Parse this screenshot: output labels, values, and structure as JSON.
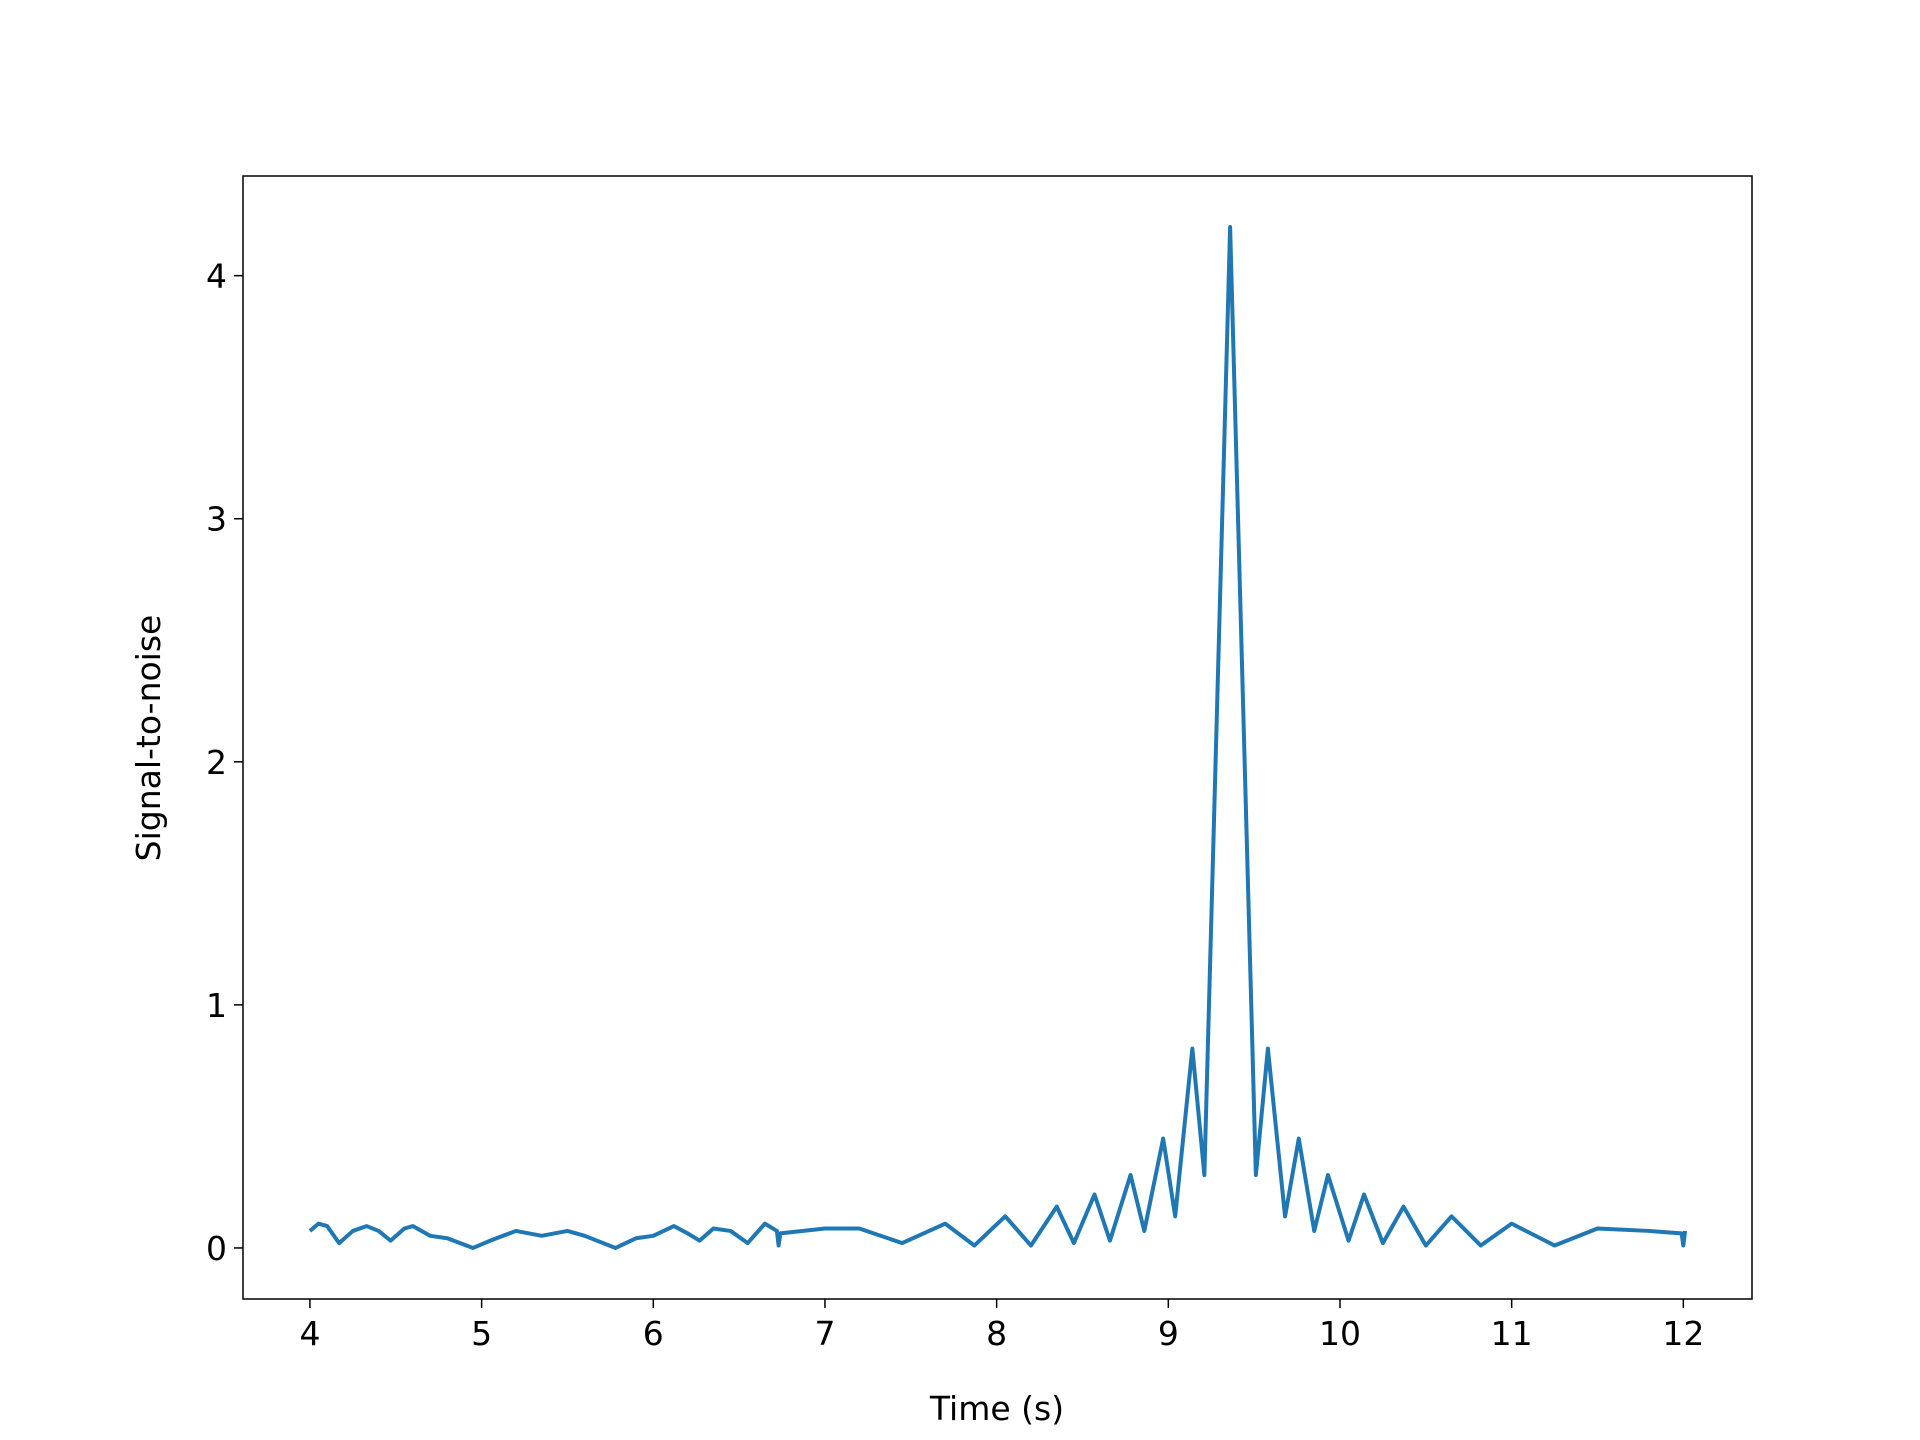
{
  "chart_data": {
    "type": "line",
    "xlabel": "Time (s)",
    "ylabel": "Signal-to-noise",
    "x": [
      4.0,
      4.05,
      4.1,
      4.17,
      4.25,
      4.33,
      4.4,
      4.47,
      4.55,
      4.6,
      4.7,
      4.8,
      4.95,
      5.05,
      5.2,
      5.35,
      5.5,
      5.6,
      5.78,
      5.9,
      6.0,
      6.12,
      6.2,
      6.27,
      6.35,
      6.45,
      6.55,
      6.65,
      6.72,
      6.73,
      6.74,
      7.0,
      7.2,
      7.45,
      7.7,
      7.87,
      8.05,
      8.2,
      8.35,
      8.45,
      8.57,
      8.66,
      8.78,
      8.86,
      8.97,
      9.04,
      9.14,
      9.21,
      9.36,
      9.51,
      9.58,
      9.68,
      9.76,
      9.85,
      9.93,
      10.05,
      10.14,
      10.25,
      10.37,
      10.5,
      10.65,
      10.82,
      11.0,
      11.25,
      11.5,
      11.8,
      11.99,
      12.0,
      12.01
    ],
    "values": [
      0.07,
      0.1,
      0.09,
      0.02,
      0.07,
      0.09,
      0.07,
      0.03,
      0.08,
      0.09,
      0.05,
      0.04,
      0.0,
      0.03,
      0.07,
      0.05,
      0.07,
      0.05,
      0.0,
      0.04,
      0.05,
      0.09,
      0.06,
      0.03,
      0.08,
      0.07,
      0.02,
      0.1,
      0.07,
      0.01,
      0.06,
      0.08,
      0.08,
      0.02,
      0.1,
      0.01,
      0.13,
      0.01,
      0.17,
      0.02,
      0.22,
      0.03,
      0.3,
      0.07,
      0.45,
      0.13,
      0.82,
      0.3,
      4.2,
      0.3,
      0.82,
      0.13,
      0.45,
      0.07,
      0.3,
      0.03,
      0.22,
      0.02,
      0.17,
      0.01,
      0.13,
      0.01,
      0.1,
      0.01,
      0.08,
      0.07,
      0.06,
      0.01,
      0.07
    ],
    "color": "#1f77b4",
    "xlim": [
      3.61,
      12.4
    ],
    "xticks": [
      4,
      5,
      6,
      7,
      8,
      9,
      10,
      11,
      12
    ],
    "ylim": [
      -0.21,
      4.41
    ],
    "yticks": [
      0,
      1,
      2,
      3,
      4
    ]
  }
}
